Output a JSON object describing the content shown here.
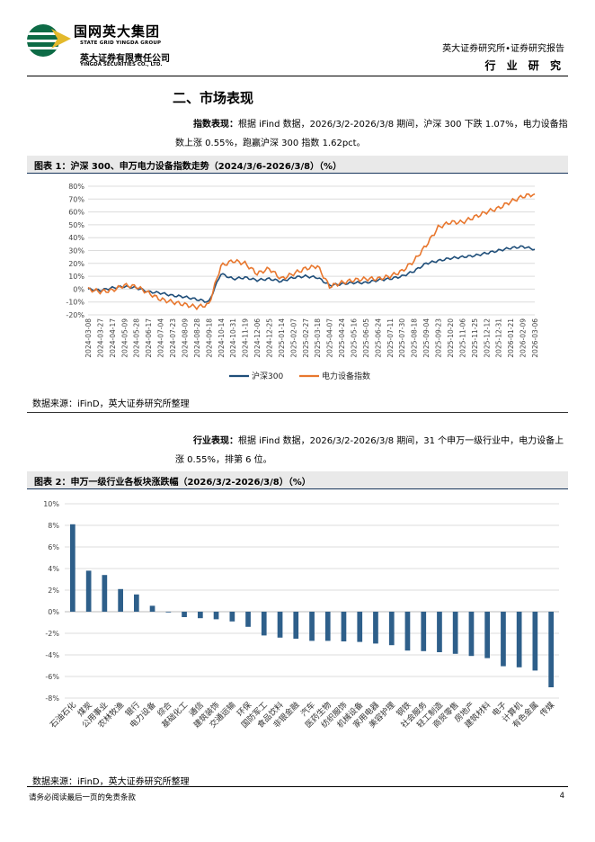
{
  "header": {
    "company_cn": "国网英大集团",
    "company_en": "STATE GRID YINGDA GROUP",
    "sub_cn": "英大证券有限责任公司",
    "sub_en": "YINGDA SECURITIES CO., LTD.",
    "report_label": "英大证券研究所•证券研究报告",
    "category": "行 业 研 究",
    "brand_color": "#0d6b46"
  },
  "section_title": "二、市场表现",
  "para1": {
    "label": "指数表现：",
    "text": "根据 iFind 数据，2026/3/2-2026/3/8 期间，沪深 300 下跌 1.07%，电力设备指数上涨 0.55%，跑赢沪深 300 指数 1.62pct。"
  },
  "fig1": {
    "title": "图表 1：沪深 300、申万电力设备指数走势（2024/3/6-2026/3/8）（%）",
    "source": "数据来源：iFinD，英大证券研究所整理"
  },
  "para2": {
    "label": "行业表现：",
    "text": "根据 iFind 数据，2026/3/2-2026/3/8 期间，31 个申万一级行业中，电力设备上涨 0.55%，排第 6 位。"
  },
  "fig2": {
    "title": "图表 2：申万一级行业各板块涨跌幅（2026/3/2-2026/3/8）（%）",
    "source": "数据来源：iFinD，英大证券研究所整理"
  },
  "footer": {
    "disclaimer": "请务必阅读最后一页的免责条款",
    "page": "4"
  },
  "chart_data": [
    {
      "type": "line",
      "title": "",
      "ylim": [
        -20,
        80
      ],
      "y_ticks": [
        "-20%",
        "-10%",
        "0%",
        "10%",
        "20%",
        "30%",
        "40%",
        "50%",
        "60%",
        "70%",
        "80%"
      ],
      "x": [
        "2024-03-08",
        "2024-03-27",
        "2024-04-17",
        "2024-05-09",
        "2024-05-28",
        "2024-06-17",
        "2024-07-04",
        "2024-07-23",
        "2024-08-09",
        "2024-08-28",
        "2024-09-18",
        "2024-10-14",
        "2024-10-31",
        "2024-11-19",
        "2024-12-06",
        "2024-12-25",
        "2025-01-14",
        "2025-02-07",
        "2025-02-27",
        "2025-03-18",
        "2025-04-07",
        "2025-04-24",
        "2025-05-16",
        "2025-06-05",
        "2025-06-24",
        "2025-07-11",
        "2025-07-30",
        "2025-08-18",
        "2025-09-04",
        "2025-09-23",
        "2025-10-20",
        "2025-11-06",
        "2025-11-25",
        "2025-12-12",
        "2025-12-31",
        "2026-01-21",
        "2026-02-09",
        "2026-03-06"
      ],
      "grid": true,
      "legend": "bottom",
      "series": [
        {
          "name": "沪深300",
          "color": "#1f4e79",
          "values": [
            0,
            -1,
            1,
            2,
            1,
            -2,
            -3,
            -5,
            -6,
            -8,
            -10,
            12,
            8,
            9,
            7,
            8,
            6,
            9,
            10,
            9,
            3,
            4,
            5,
            5,
            7,
            8,
            10,
            14,
            20,
            22,
            24,
            25,
            26,
            28,
            30,
            32,
            33,
            31
          ]
        },
        {
          "name": "电力设备指数",
          "color": "#e8772e",
          "values": [
            0,
            -2,
            -1,
            3,
            2,
            -3,
            -8,
            -10,
            -12,
            -14,
            -12,
            18,
            22,
            20,
            12,
            16,
            8,
            12,
            16,
            18,
            2,
            5,
            7,
            8,
            8,
            10,
            14,
            22,
            34,
            48,
            52,
            52,
            56,
            60,
            63,
            68,
            72,
            74
          ]
        }
      ]
    },
    {
      "type": "bar",
      "title": "",
      "ylim": [
        -8,
        10
      ],
      "y_ticks": [
        "-8%",
        "-6%",
        "-4%",
        "-2%",
        "0%",
        "2%",
        "4%",
        "6%",
        "8%",
        "10%"
      ],
      "color": "#2e5f8a",
      "categories": [
        "石油石化",
        "煤炭",
        "公用事业",
        "农林牧渔",
        "银行",
        "电力设备",
        "综合",
        "基础化工",
        "通信",
        "建筑装饰",
        "交通运输",
        "环保",
        "国防军工",
        "食品饮料",
        "非银金融",
        "汽车",
        "医药生物",
        "纺织服饰",
        "机械设备",
        "家用电器",
        "美容护理",
        "钢铁",
        "社会服务",
        "轻工制造",
        "商贸零售",
        "房地产",
        "建筑材料",
        "电子",
        "计算机",
        "有色金属",
        "传媒"
      ],
      "values": [
        8.1,
        3.8,
        3.4,
        2.1,
        1.6,
        0.55,
        -0.05,
        -0.5,
        -0.6,
        -0.7,
        -0.9,
        -1.4,
        -2.2,
        -2.4,
        -2.5,
        -2.7,
        -2.7,
        -2.75,
        -2.8,
        -2.95,
        -3.1,
        -3.6,
        -3.65,
        -3.75,
        -3.9,
        -4.1,
        -4.3,
        -5.05,
        -5.15,
        -5.45,
        -7.0
      ]
    }
  ]
}
